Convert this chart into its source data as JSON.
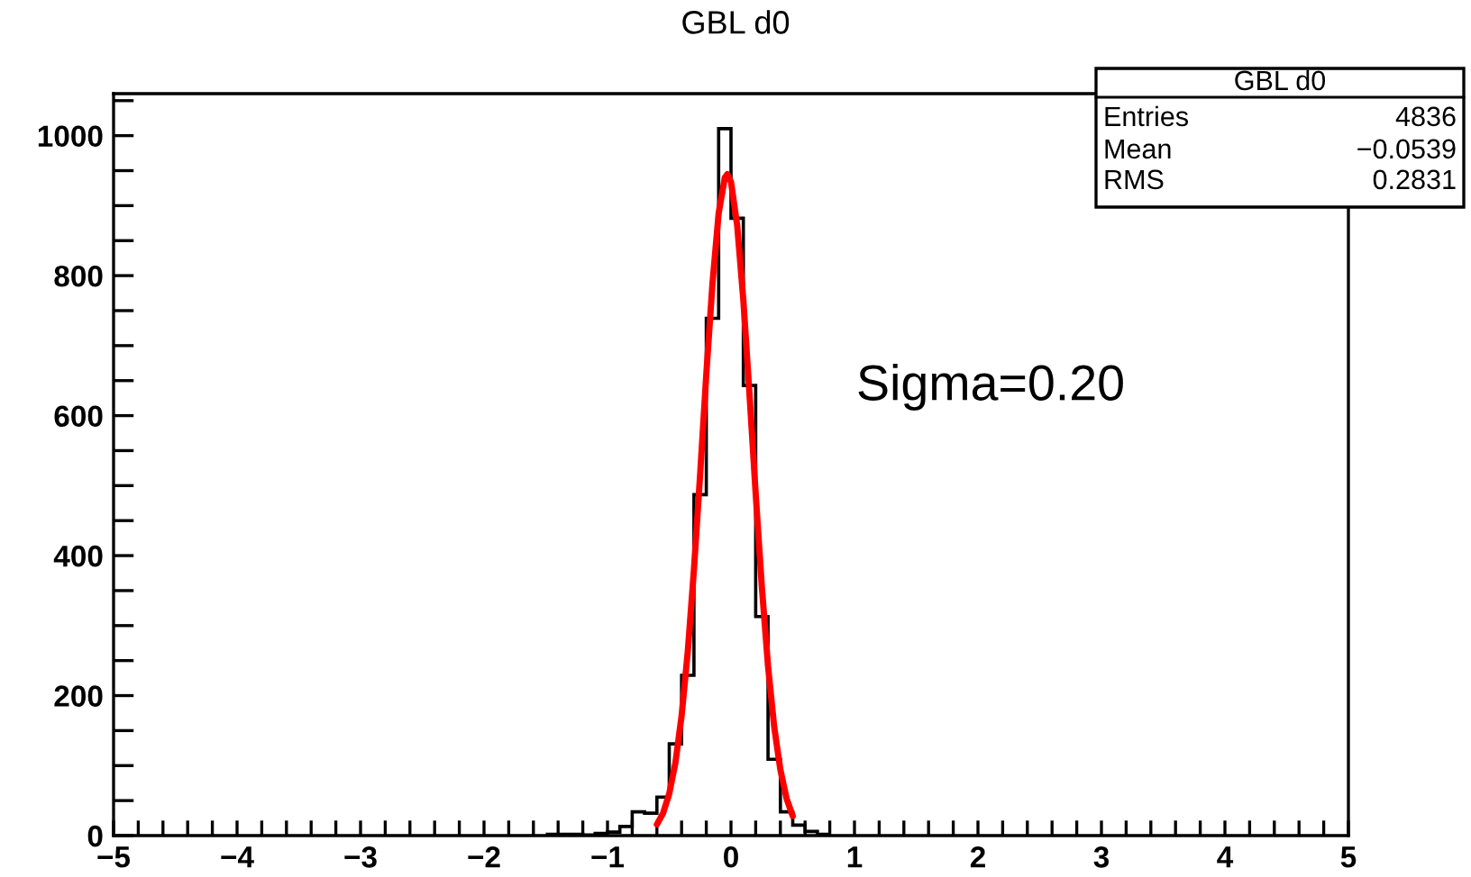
{
  "chart_data": {
    "type": "histogram",
    "title": "GBL d0",
    "series": [
      {
        "color": "#000000",
        "bins": [
          -1.5,
          -1.4,
          -1.3,
          -1.2,
          -1.1,
          -1.0,
          -0.9,
          -0.8,
          -0.7,
          -0.6,
          -0.5,
          -0.4,
          -0.3,
          -0.2,
          -0.1,
          0,
          0.1,
          0.2,
          0.3,
          0.4,
          0.5,
          0.6,
          0.7,
          0.8
        ],
        "values": [
          2,
          2,
          2,
          1,
          3,
          5,
          13,
          34,
          32,
          55,
          131,
          229,
          487,
          739,
          1010,
          882,
          643,
          313,
          109,
          34,
          15,
          6,
          2
        ]
      },
      {
        "type": "line",
        "color": "#ff0000",
        "x": [
          -0.6,
          -0.55,
          -0.5,
          -0.45,
          -0.4,
          -0.35,
          -0.3,
          -0.25,
          -0.2,
          -0.15,
          -0.1,
          -0.05,
          -0.03,
          0,
          0.05,
          0.1,
          0.15,
          0.2,
          0.25,
          0.3,
          0.35,
          0.4,
          0.45,
          0.5
        ],
        "values": [
          16,
          32,
          60,
          104,
          171,
          263,
          380,
          516,
          659,
          789,
          889,
          940,
          945,
          934,
          872,
          765,
          630,
          488,
          355,
          242,
          155,
          94,
          53,
          28
        ]
      }
    ],
    "xlim": [
      -5,
      5
    ],
    "xticks": [
      {
        "value": -5,
        "label": "−5"
      },
      {
        "value": -4.8,
        "label": null
      },
      {
        "value": -4.6,
        "label": null
      },
      {
        "value": -4.4,
        "label": null
      },
      {
        "value": -4.2,
        "label": null
      },
      {
        "value": -4,
        "label": "−4"
      },
      {
        "value": -3.8,
        "label": null
      },
      {
        "value": -3.6,
        "label": null
      },
      {
        "value": -3.4,
        "label": null
      },
      {
        "value": -3.2,
        "label": null
      },
      {
        "value": -3,
        "label": "−3"
      },
      {
        "value": -2.8,
        "label": null
      },
      {
        "value": -2.6,
        "label": null
      },
      {
        "value": -2.4,
        "label": null
      },
      {
        "value": -2.2,
        "label": null
      },
      {
        "value": -2,
        "label": "−2"
      },
      {
        "value": -1.8,
        "label": null
      },
      {
        "value": -1.6,
        "label": null
      },
      {
        "value": -1.4,
        "label": null
      },
      {
        "value": -1.2,
        "label": null
      },
      {
        "value": -1,
        "label": "−1"
      },
      {
        "value": -0.8,
        "label": null
      },
      {
        "value": -0.6,
        "label": null
      },
      {
        "value": -0.4,
        "label": null
      },
      {
        "value": -0.2,
        "label": null
      },
      0,
      {
        "value": 0.2,
        "label": null
      },
      {
        "value": 0.4,
        "label": null
      },
      {
        "value": 0.6,
        "label": null
      },
      {
        "value": 0.8,
        "label": null
      },
      1,
      {
        "value": 1.2,
        "label": null
      },
      {
        "value": 1.4,
        "label": null
      },
      {
        "value": 1.6,
        "label": null
      },
      {
        "value": 1.8,
        "label": null
      },
      2,
      {
        "value": 2.2,
        "label": null
      },
      {
        "value": 2.4,
        "label": null
      },
      {
        "value": 2.6,
        "label": null
      },
      {
        "value": 2.8,
        "label": null
      },
      3,
      {
        "value": 3.2,
        "label": null
      },
      {
        "value": 3.4,
        "label": null
      },
      {
        "value": 3.6,
        "label": null
      },
      {
        "value": 3.8,
        "label": null
      },
      4,
      {
        "value": 4.2,
        "label": null
      },
      {
        "value": 4.4,
        "label": null
      },
      {
        "value": 4.6,
        "label": null
      },
      {
        "value": 4.8,
        "label": null
      },
      5
    ],
    "ylim": [
      0,
      1060
    ],
    "yticks": [
      0,
      {
        "value": 50,
        "label": null
      },
      {
        "value": 100,
        "label": null
      },
      {
        "value": 150,
        "label": null
      },
      200,
      {
        "value": 250,
        "label": null
      },
      {
        "value": 300,
        "label": null
      },
      {
        "value": 350,
        "label": null
      },
      400,
      {
        "value": 450,
        "label": null
      },
      {
        "value": 500,
        "label": null
      },
      {
        "value": 550,
        "label": null
      },
      600,
      {
        "value": 650,
        "label": null
      },
      {
        "value": 700,
        "label": null
      },
      {
        "value": 750,
        "label": null
      },
      800,
      {
        "value": 850,
        "label": null
      },
      {
        "value": 900,
        "label": null
      },
      {
        "value": 950,
        "label": null
      },
      1000,
      {
        "value": 1050,
        "label": null
      }
    ],
    "grid": false,
    "annotations": [
      "GBL d0",
      "Entries",
      "4836",
      "Mean",
      "−0.0539",
      "RMS",
      "0.2831",
      "Sigma=0.20"
    ]
  }
}
